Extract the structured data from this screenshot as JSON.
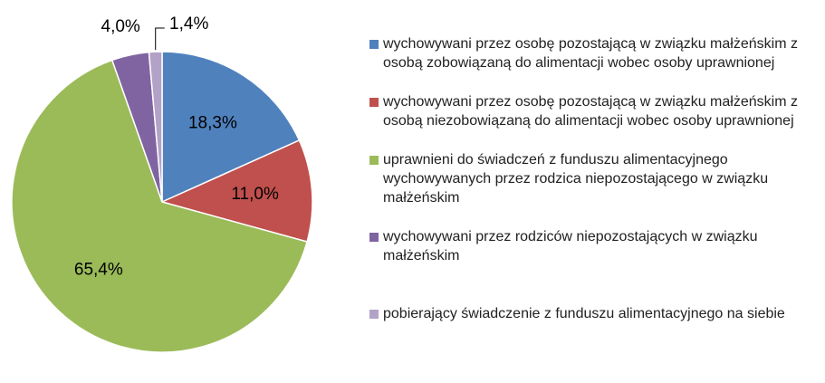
{
  "chart_data": {
    "type": "pie",
    "categories": [
      "wychowywani przez osobę pozostającą w związku małżeńskim z osobą zobowiązaną do alimentacji wobec osoby uprawnionej",
      "wychowywani przez osobę pozostającą w związku małżeńskim z osobą niezobowiązaną do alimentacji wobec osoby uprawnionej",
      "uprawnieni do świadczeń z funduszu alimentacyjnego wychowywanych przez rodzica niepozostającego w związku małżeńskim",
      "wychowywani przez rodziców niepozostających w związku małżeńskim",
      "pobierający świadczenie z funduszu alimentacyjnego na siebie"
    ],
    "values": [
      18.3,
      11.0,
      65.4,
      4.0,
      1.4
    ],
    "value_labels": [
      "18,3%",
      "11,0%",
      "65,4%",
      "4,0%",
      "1,4%"
    ],
    "colors": [
      "#4f81bd",
      "#c0504d",
      "#9bbb59",
      "#8064a2",
      "#b3a2c7"
    ],
    "legend": "right"
  }
}
